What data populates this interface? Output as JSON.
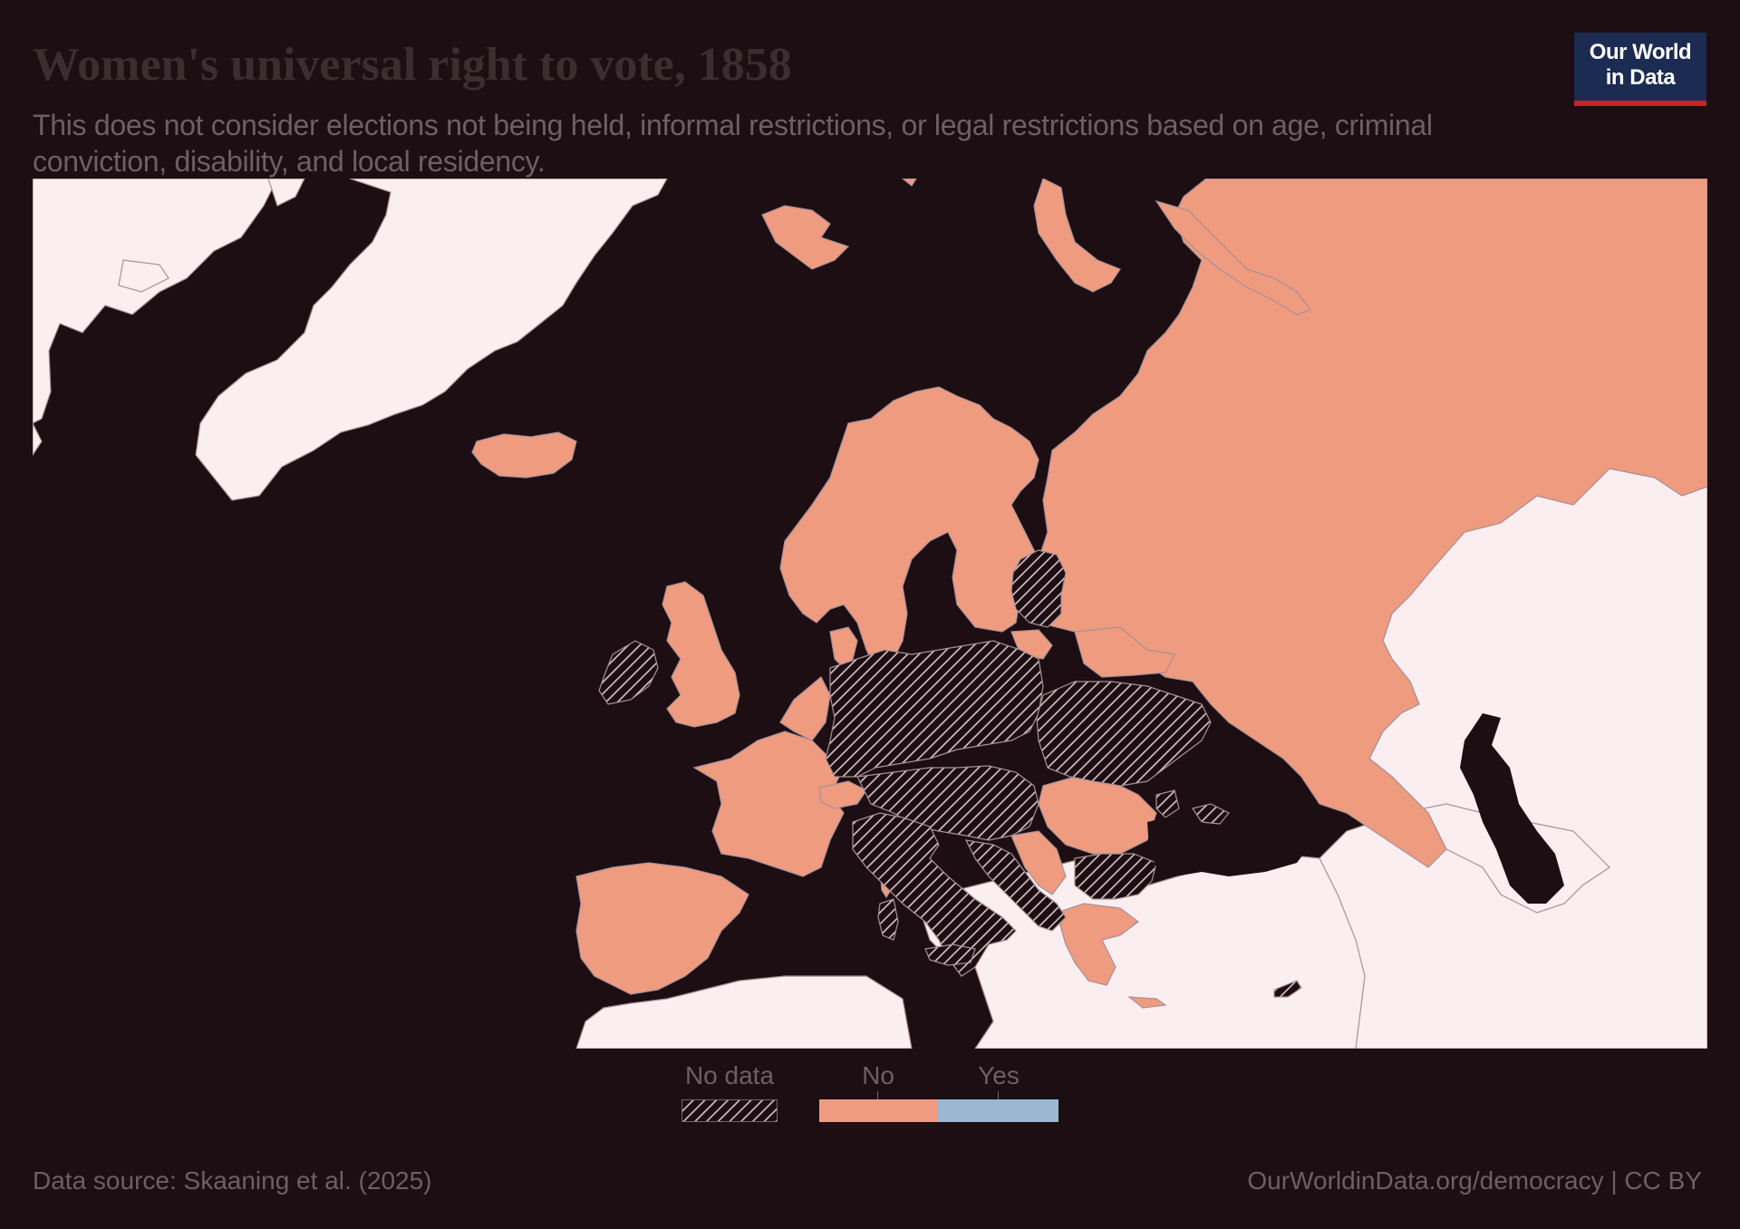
{
  "title": "Women's universal right to vote, 1858",
  "subtitle": "This does not consider elections not being held, informal restrictions, or legal restrictions based on age, criminal conviction, disability, and local residency.",
  "logo": {
    "line1": "Our World",
    "line2": "in Data"
  },
  "colors": {
    "background": "#1c0e12",
    "title": "#3a2e31",
    "text": "#6b6064",
    "no": "#ef9b80",
    "yes": "#9ab8d1",
    "no_data_land": "#fbeef1",
    "sea": "#1c0e12",
    "border": "#a89196",
    "logo_bg": "#1b2b52",
    "logo_bar": "#c0272d"
  },
  "legend": {
    "no_data": "No data",
    "no": "No",
    "yes": "Yes"
  },
  "source": "Data source: Skaaning et al. (2025)",
  "license": "OurWorldinData.org/democracy | CC BY",
  "map_data": {
    "region": "Europe",
    "year": "1858",
    "categories": [
      "No data",
      "No",
      "Yes"
    ],
    "countries": {
      "Russia": "No",
      "Norway": "No",
      "Sweden": "No",
      "Finland": "No",
      "Iceland": "No",
      "Svalbard": "No",
      "United Kingdom": "No",
      "Denmark": "No",
      "Belgium": "No",
      "Netherlands": "No",
      "France": "No",
      "Spain": "No",
      "Portugal": "No",
      "Switzerland": "No",
      "Romania": "No",
      "Greece": "No",
      "Serbia": "No",
      "Corsica": "No",
      "Crete": "No",
      "Ireland": "No data",
      "Germany": "No data",
      "Poland": "No data",
      "Baltic states": "No data",
      "Austria-Hungary": "No data",
      "Ukraine": "No data",
      "Italy": "No data",
      "Sardinia": "No data",
      "Sicily": "No data",
      "Bulgaria": "No data",
      "Balkans": "No data",
      "Cyprus": "No data",
      "Greenland": "No data",
      "Canada": "No data",
      "Kazakhstan": "No data",
      "Turkey": "No data",
      "North Africa": "No data",
      "Middle East": "No data",
      "Caucasus": "No data",
      "Central Asia": "No data"
    }
  }
}
